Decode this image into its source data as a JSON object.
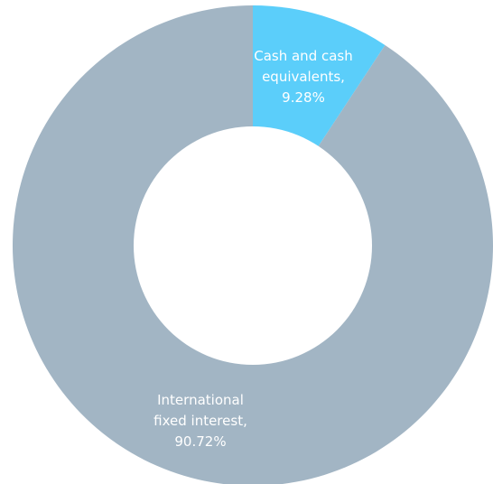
{
  "chart_data": {
    "type": "pie",
    "donut": true,
    "title": "",
    "slices": [
      {
        "name": "Cash and cash equivalents",
        "value": 9.28,
        "color": "#5BCEFA",
        "label_lines": [
          "Cash and cash",
          "equivalents,",
          "9.28%"
        ]
      },
      {
        "name": "International fixed interest",
        "value": 90.72,
        "color": "#A2B5C4",
        "label_lines": [
          "International",
          "fixed interest,",
          "90.72%"
        ]
      }
    ],
    "legend": "none"
  }
}
